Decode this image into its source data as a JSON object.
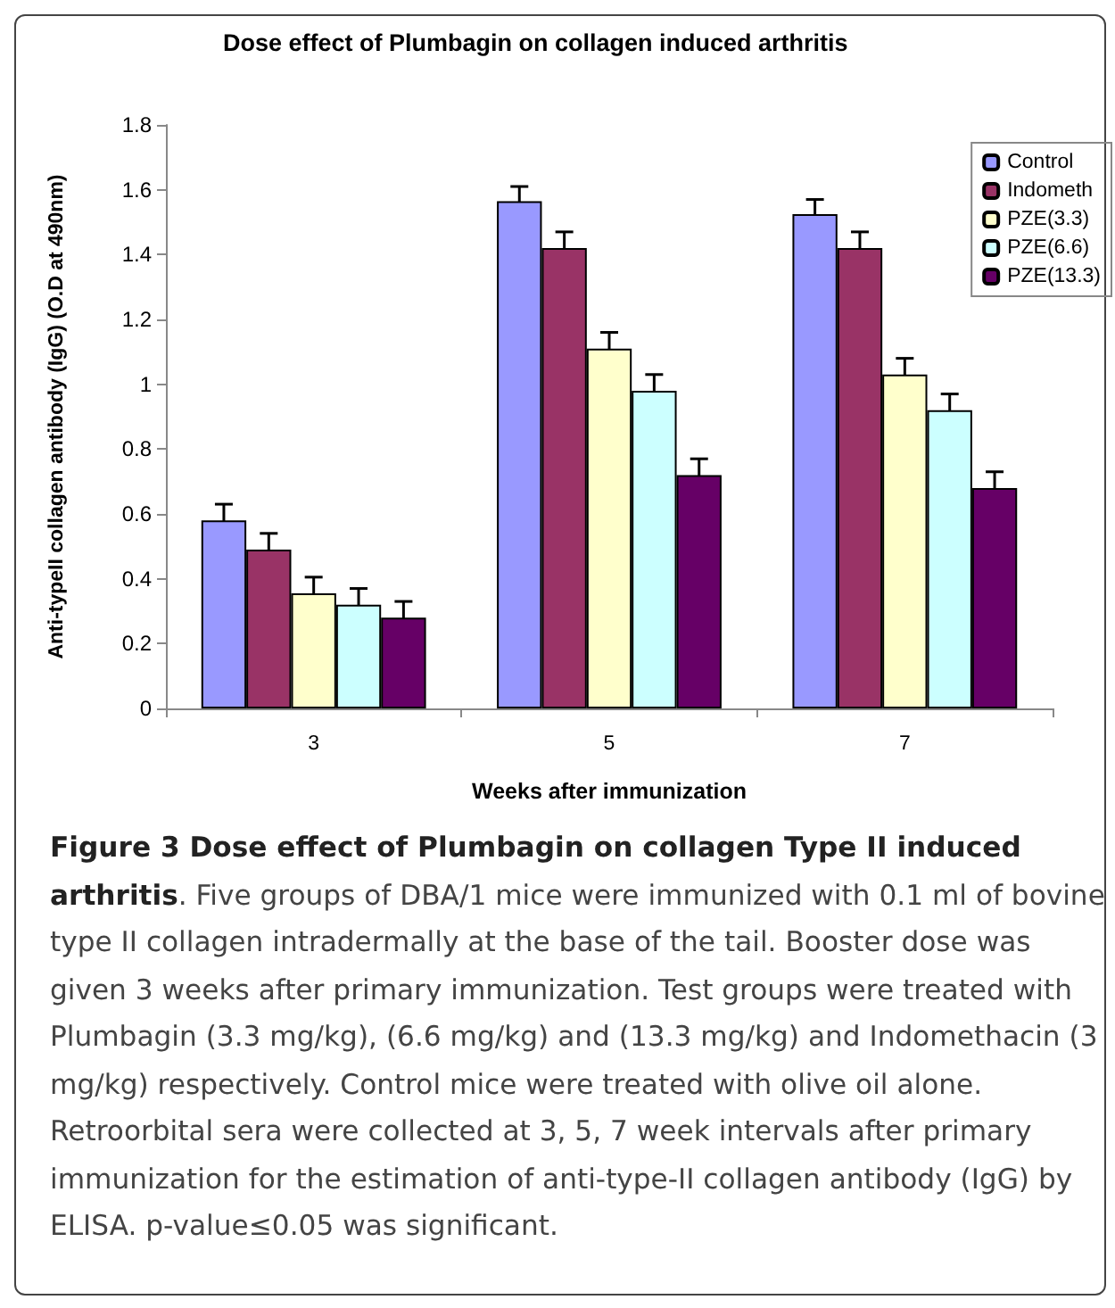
{
  "chart_data": {
    "type": "bar",
    "title": "Dose effect of Plumbagin on collagen induced arthritis",
    "xlabel": "Weeks after immunization",
    "ylabel": "Anti-typeII collagen antibody (IgG) (O.D at 490nm)",
    "categories": [
      "3",
      "5",
      "7"
    ],
    "series": [
      {
        "name": "Control",
        "color": "#9999ff",
        "values": [
          0.58,
          1.565,
          1.525
        ],
        "errors": [
          0.05,
          0.045,
          0.045
        ]
      },
      {
        "name": "Indometh",
        "color": "#993366",
        "values": [
          0.49,
          1.42,
          1.42
        ],
        "errors": [
          0.05,
          0.05,
          0.05
        ]
      },
      {
        "name": "PZE(3.3)",
        "color": "#ffffcc",
        "values": [
          0.355,
          1.11,
          1.03
        ],
        "errors": [
          0.05,
          0.05,
          0.05
        ]
      },
      {
        "name": "PZE(6.6)",
        "color": "#ccffff",
        "values": [
          0.32,
          0.98,
          0.92
        ],
        "errors": [
          0.05,
          0.05,
          0.05
        ]
      },
      {
        "name": "PZE(13.3)",
        "color": "#660066",
        "values": [
          0.28,
          0.72,
          0.68
        ],
        "errors": [
          0.05,
          0.05,
          0.05
        ]
      }
    ],
    "ylim": [
      0,
      1.8
    ],
    "yticks": [
      0,
      0.2,
      0.4,
      0.6,
      0.8,
      1,
      1.2,
      1.4,
      1.6,
      1.8
    ],
    "grid": false,
    "legend": "top right",
    "annotations": [
      "Figure 3 Dose effect of Plumbagin on collagen Type II induced arthritis",
      ". Five groups of DBA/1 mice were immunized with 0.1 ml of bovine type II collagen intradermally at the base of the tail. Booster dose was given 3 weeks after primary immunization. Test groups were treated with Plumbagin (3.3 mg/kg), (6.6 mg/kg) and (13.3 mg/kg) and Indomethacin (3 mg/kg) respectively. Control mice were treated with olive oil alone. Retroorbital sera were collected at 3, 5, 7 week intervals after primary immunization for the estimation of anti-type-II collagen antibody (IgG) by ELISA. p-value≤0.05 was significant."
    ]
  }
}
